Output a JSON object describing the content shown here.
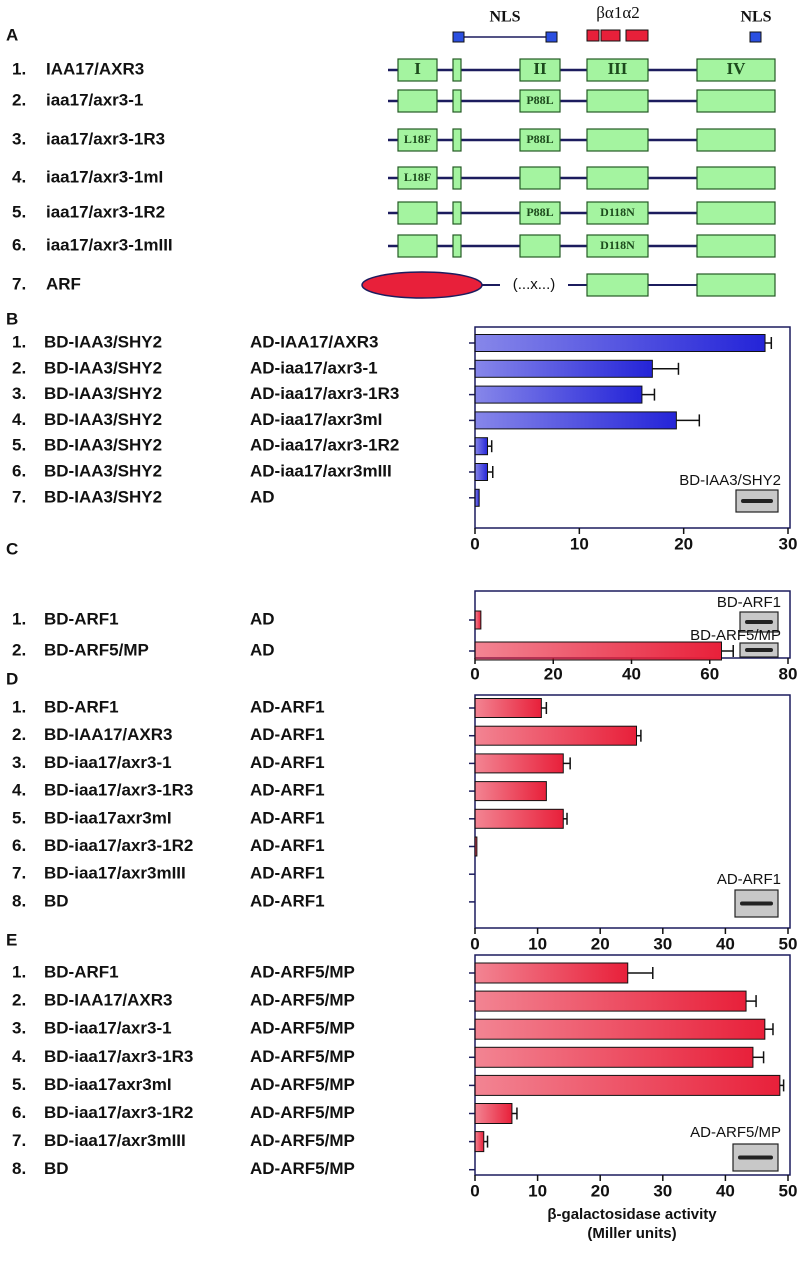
{
  "diagram": {
    "panel": "A",
    "nls": [
      "NLS",
      "NLS"
    ],
    "fold": "βα1α2",
    "domains": [
      "I",
      "II",
      "III",
      "IV"
    ],
    "rows": [
      {
        "number": "1.",
        "name": "IAA17/AXR3"
      },
      {
        "number": "2.",
        "name": "iaa17/axr3-1",
        "mutations": {
          "II": "P88L"
        }
      },
      {
        "number": "3.",
        "name": "iaa17/axr3-1R3",
        "mutations": {
          "I": "L18F",
          "II": "P88L"
        }
      },
      {
        "number": "4.",
        "name": "iaa17/axr3-1mI",
        "mutations": {
          "I": "L18F"
        }
      },
      {
        "number": "5.",
        "name": "iaa17/axr3-1R2",
        "mutations": {
          "II": "P88L",
          "III": "D118N"
        }
      },
      {
        "number": "6.",
        "name": "iaa17/axr3-1mIII",
        "mutations": {
          "III": "D118N"
        }
      },
      {
        "number": "7.",
        "name": "ARF",
        "gap": "(...x...)"
      }
    ]
  },
  "chart_data": [
    {
      "type": "bar",
      "panel": "B",
      "color": "#2424d8",
      "row_numbers": [
        "1.",
        "2.",
        "3.",
        "4.",
        "5.",
        "6.",
        "7."
      ],
      "categories": [
        "BD-IAA3/SHY2",
        "BD-IAA3/SHY2",
        "BD-IAA3/SHY2",
        "BD-IAA3/SHY2",
        "BD-IAA3/SHY2",
        "BD-IAA3/SHY2",
        "BD-IAA3/SHY2"
      ],
      "prey": [
        "AD-IAA17/AXR3",
        "AD-iaa17/axr3-1",
        "AD-iaa17/axr3-1R3",
        "AD-iaa17/axr3mI",
        "AD-iaa17/axr3-1R2",
        "AD-iaa17/axr3mIII",
        "AD"
      ],
      "values": [
        27.8,
        17,
        16,
        19.3,
        1.2,
        1.2,
        0.4
      ],
      "errors": [
        0.6,
        2.5,
        1.2,
        2.2,
        0.4,
        0.5,
        null
      ],
      "xlim": [
        0,
        30
      ],
      "xticks": [
        0,
        10,
        20,
        30
      ],
      "insets": [
        "BD-IAA3/SHY2"
      ]
    },
    {
      "type": "bar",
      "panel": "C",
      "color": "#e8203a",
      "row_numbers": [
        "1.",
        "2."
      ],
      "categories": [
        "BD-ARF1",
        "BD-ARF5/MP"
      ],
      "prey": [
        "AD",
        "AD"
      ],
      "values": [
        1.5,
        63
      ],
      "errors": [
        null,
        3
      ],
      "xlim": [
        0,
        80
      ],
      "xticks": [
        0,
        20,
        40,
        60,
        80
      ],
      "insets": [
        "BD-ARF1",
        "BD-ARF5/MP"
      ]
    },
    {
      "type": "bar",
      "panel": "D",
      "color": "#e8203a",
      "row_numbers": [
        "1.",
        "2.",
        "3.",
        "4.",
        "5.",
        "6.",
        "7.",
        "8."
      ],
      "categories": [
        "BD-ARF1",
        "BD-IAA17/AXR3",
        "BD-iaa17/axr3-1",
        "BD-iaa17/axr3-1R3",
        "BD-iaa17axr3mI",
        "BD-iaa17/axr3-1R2",
        "BD-iaa17/axr3mIII",
        "BD"
      ],
      "prey": [
        "AD-ARF1",
        "AD-ARF1",
        "AD-ARF1",
        "AD-ARF1",
        "AD-ARF1",
        "AD-ARF1",
        "AD-ARF1",
        "AD-ARF1"
      ],
      "values": [
        10.6,
        25.8,
        14.1,
        11.4,
        14.1,
        0.3,
        0,
        0
      ],
      "errors": [
        0.8,
        0.7,
        1.1,
        null,
        0.6,
        null,
        null,
        null
      ],
      "xlim": [
        0,
        50
      ],
      "xticks": [
        0,
        10,
        20,
        30,
        40,
        50
      ],
      "insets": [
        "AD-ARF1"
      ]
    },
    {
      "type": "bar",
      "panel": "E",
      "color": "#e8203a",
      "row_numbers": [
        "1.",
        "2.",
        "3.",
        "4.",
        "5.",
        "6.",
        "7.",
        "8."
      ],
      "categories": [
        "BD-ARF1",
        "BD-IAA17/AXR3",
        "BD-iaa17/axr3-1",
        "BD-iaa17/axr3-1R3",
        "BD-iaa17axr3mI",
        "BD-iaa17/axr3-1R2",
        "BD-iaa17/axr3mIII",
        "BD"
      ],
      "prey": [
        "AD-ARF5/MP",
        "AD-ARF5/MP",
        "AD-ARF5/MP",
        "AD-ARF5/MP",
        "AD-ARF5/MP",
        "AD-ARF5/MP",
        "AD-ARF5/MP",
        "AD-ARF5/MP"
      ],
      "values": [
        24.4,
        43.3,
        46.3,
        44.4,
        48.7,
        5.9,
        1.4,
        0
      ],
      "errors": [
        4,
        1.6,
        1.3,
        1.7,
        0.6,
        0.8,
        0.6,
        null
      ],
      "xlim": [
        0,
        50
      ],
      "xticks": [
        0,
        10,
        20,
        30,
        40,
        50
      ],
      "insets": [
        "AD-ARF5/MP"
      ],
      "xlabel": [
        "β-galactosidase activity",
        "(Miller units)"
      ]
    }
  ]
}
